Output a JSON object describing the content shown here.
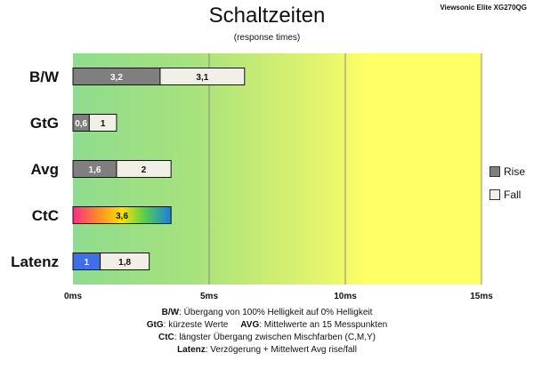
{
  "header": {
    "title": "Schaltzeiten",
    "subtitle": "(response times)",
    "model": "Viewsonic Elite XG270QG"
  },
  "chart_data": {
    "type": "bar",
    "orientation": "horizontal",
    "stacked": true,
    "categories": [
      "B/W",
      "GtG",
      "Avg",
      "CtC",
      "Latenz"
    ],
    "series": [
      {
        "name": "Rise",
        "values": [
          3.2,
          0.6,
          1.6,
          3.6,
          1
        ],
        "labels": [
          "3,2",
          "0,6",
          "1,6",
          "3,6",
          "1"
        ]
      },
      {
        "name": "Fall",
        "values": [
          3.1,
          1,
          2,
          null,
          1.8
        ],
        "labels": [
          "3,1",
          "1",
          "2",
          "",
          "1,8"
        ]
      }
    ],
    "xlim": [
      0,
      15
    ],
    "xticks": [
      0,
      5,
      10,
      15
    ],
    "xtick_labels": [
      "0ms",
      "5ms",
      "10ms",
      "15ms"
    ],
    "xlabel": "",
    "ylabel": "",
    "grid": "vertical",
    "legend_position": "right",
    "colors": {
      "rise": "#7f7f7f",
      "fall": "#f2efe6",
      "latenz_rise": "#3f6fe6",
      "bg_green": "#8fdc8f",
      "bg_yellow": "#ffff66"
    }
  },
  "legend": {
    "rise": "Rise",
    "fall": "Fall"
  },
  "notes": {
    "bw_key": "B/W",
    "bw_text": ":  Übergang von 100% Helligkeit auf 0% Helligkeit",
    "gtg_key": "GtG",
    "gtg_text": ": kürzeste  Werte",
    "avg_key": "AVG",
    "avg_text": ": Mittelwerte  an 15 Messpunkten",
    "ctc_key": "CtC",
    "ctc_text": ": längster Übergang  zwischen Mischfarben  (C,M,Y)",
    "latenz_key": "Latenz",
    "latenz_text": ": Verzögerung  + Mittelwert  Avg rise/fall"
  }
}
